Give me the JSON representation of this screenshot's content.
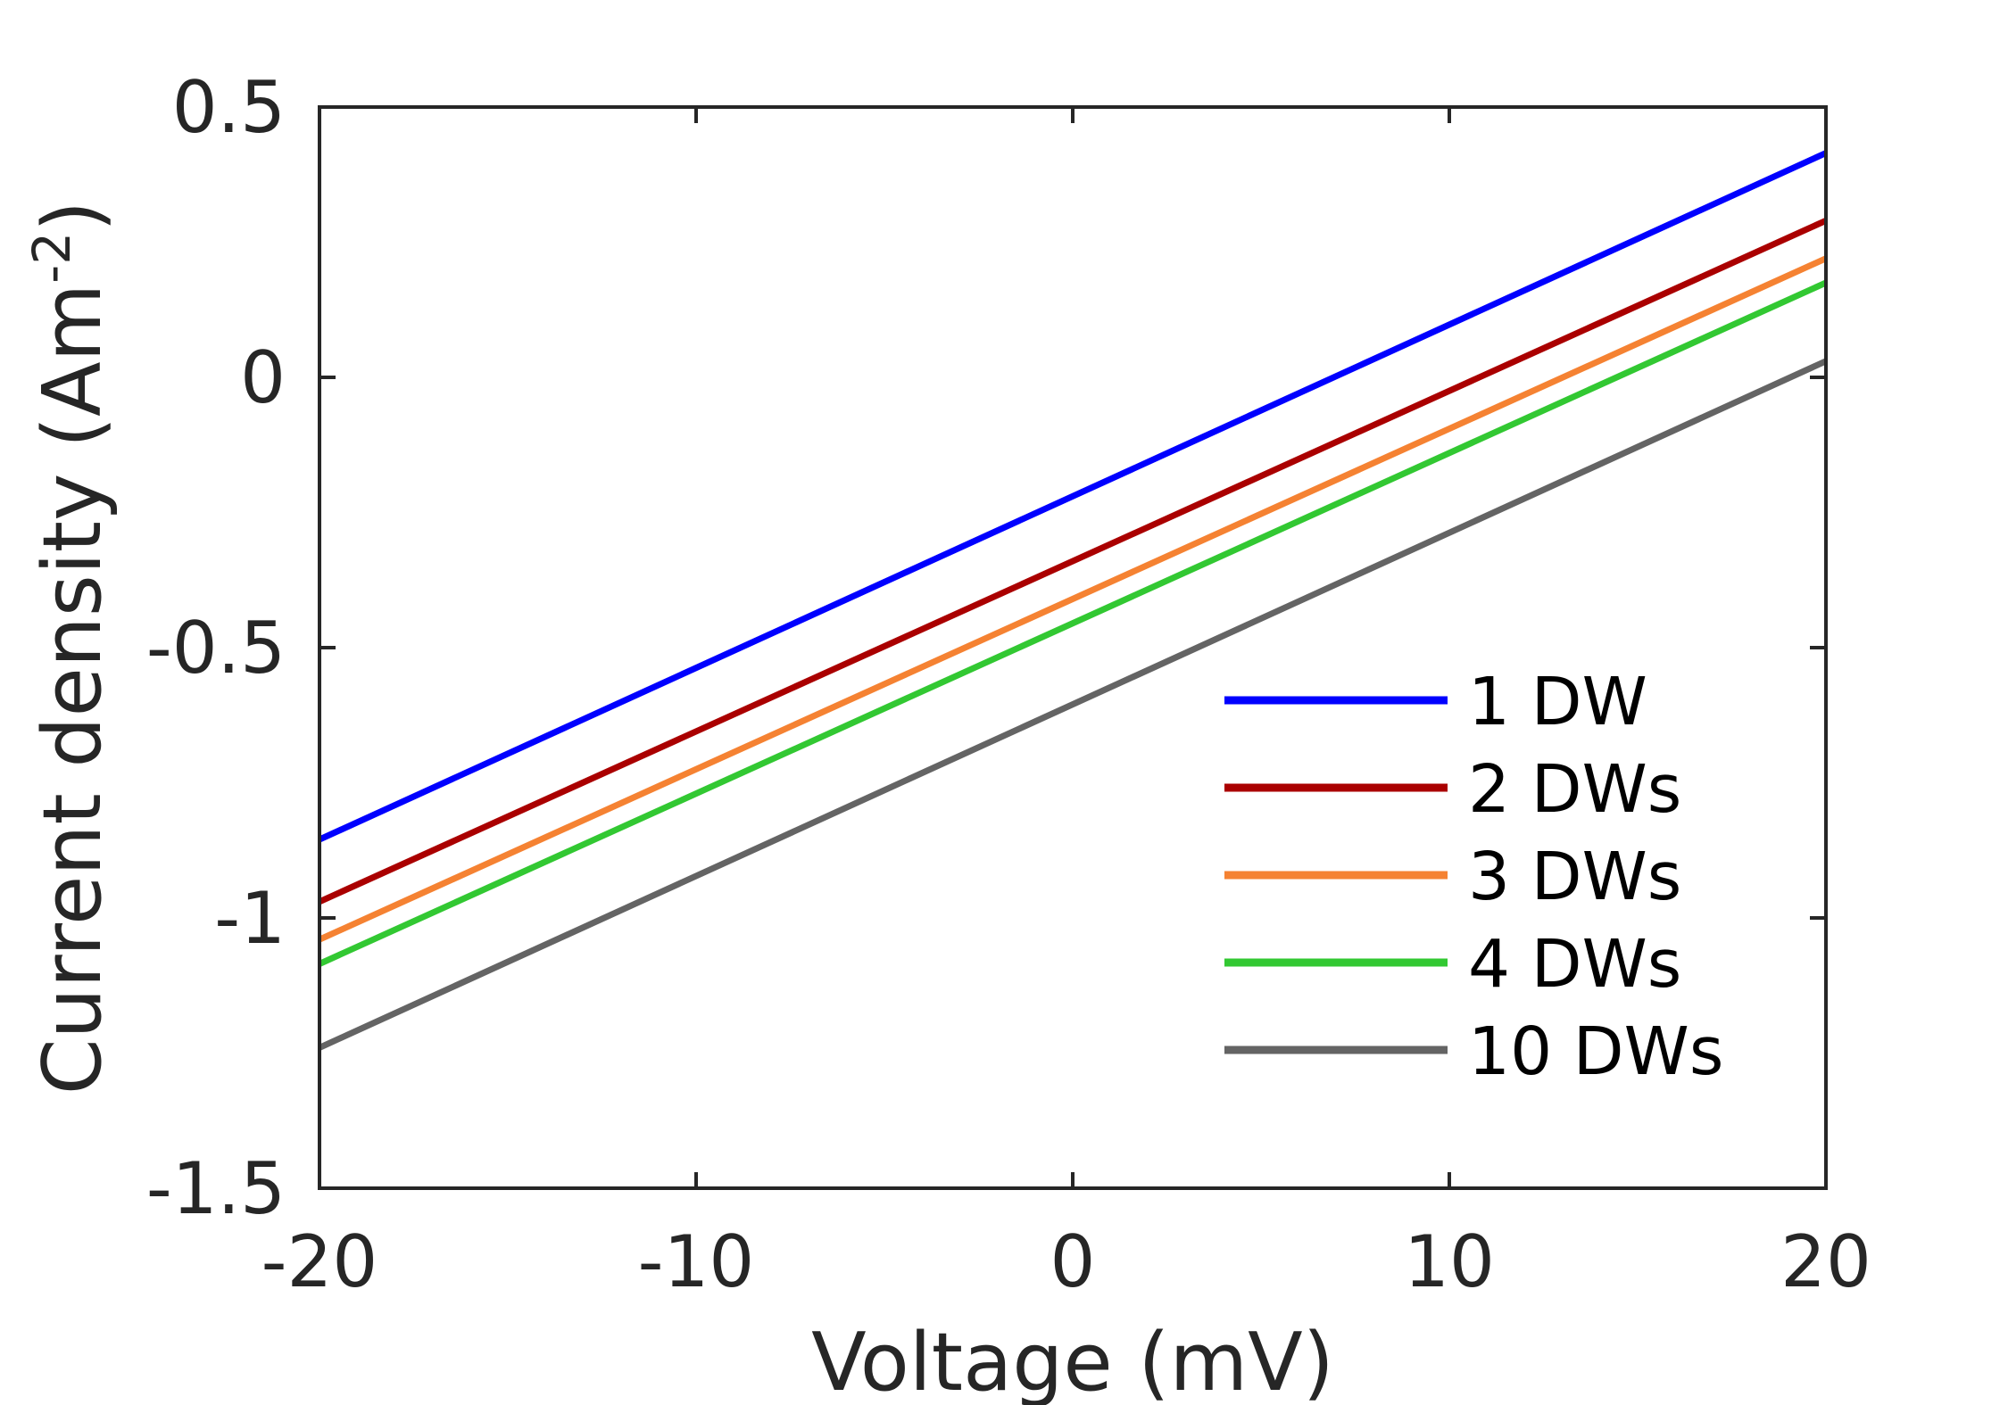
{
  "chart_data": {
    "type": "line",
    "title": "",
    "xlabel": "Voltage (mV)",
    "ylabel_main": "Current density (Am",
    "ylabel_sup": "-2",
    "ylabel_close": ")",
    "xlim": [
      -20,
      20
    ],
    "ylim": [
      -1.5,
      0.5
    ],
    "xticks": [
      -20,
      -10,
      0,
      10,
      20
    ],
    "xtick_labels": [
      "-20",
      "-10",
      "0",
      "10",
      "20"
    ],
    "yticks": [
      -1.5,
      -1,
      -0.5,
      0,
      0.5
    ],
    "ytick_labels": [
      "-1.5",
      "-1",
      "-0.5",
      "0",
      "0.5"
    ],
    "grid": false,
    "legend_position": "bottom-right",
    "x": [
      -20,
      20
    ],
    "series": [
      {
        "name": "1 DW",
        "color": "#0000ff",
        "values": [
          -0.855,
          0.415
        ]
      },
      {
        "name": "2 DWs",
        "color": "#aa0000",
        "values": [
          -0.97,
          0.29
        ]
      },
      {
        "name": "3 DWs",
        "color": "#f58232",
        "values": [
          -1.04,
          0.22
        ]
      },
      {
        "name": "4 DWs",
        "color": "#32c832",
        "values": [
          -1.085,
          0.175
        ]
      },
      {
        "name": "10 DWs",
        "color": "#646464",
        "values": [
          -1.24,
          0.03
        ]
      }
    ]
  }
}
